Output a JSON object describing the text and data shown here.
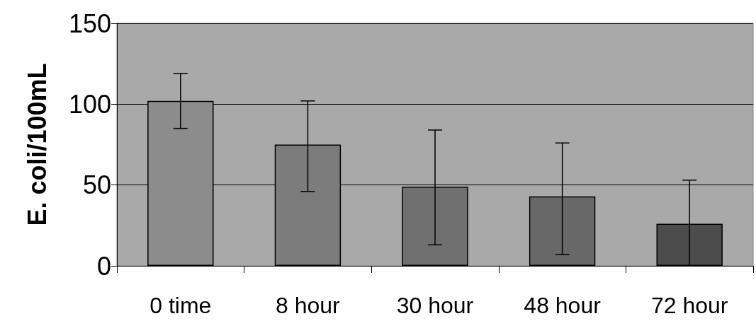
{
  "chart_data": {
    "type": "bar",
    "ylabel": "E. coli/100mL",
    "categories": [
      "0 time",
      "8 hour",
      "30 hour",
      "48 hour",
      "72 hour"
    ],
    "values": [
      102,
      75,
      49,
      43,
      26
    ],
    "colors": [
      "#8c8c8c",
      "#7c7c7c",
      "#707070",
      "#686868",
      "#4c4c4c"
    ],
    "errors": [
      [
        85,
        119
      ],
      [
        46,
        102
      ],
      [
        13,
        84
      ],
      [
        7,
        76
      ],
      [
        0,
        53
      ]
    ],
    "ylim": [
      0,
      150
    ],
    "yticks": [
      0,
      50,
      100,
      150
    ],
    "grid": "y"
  }
}
